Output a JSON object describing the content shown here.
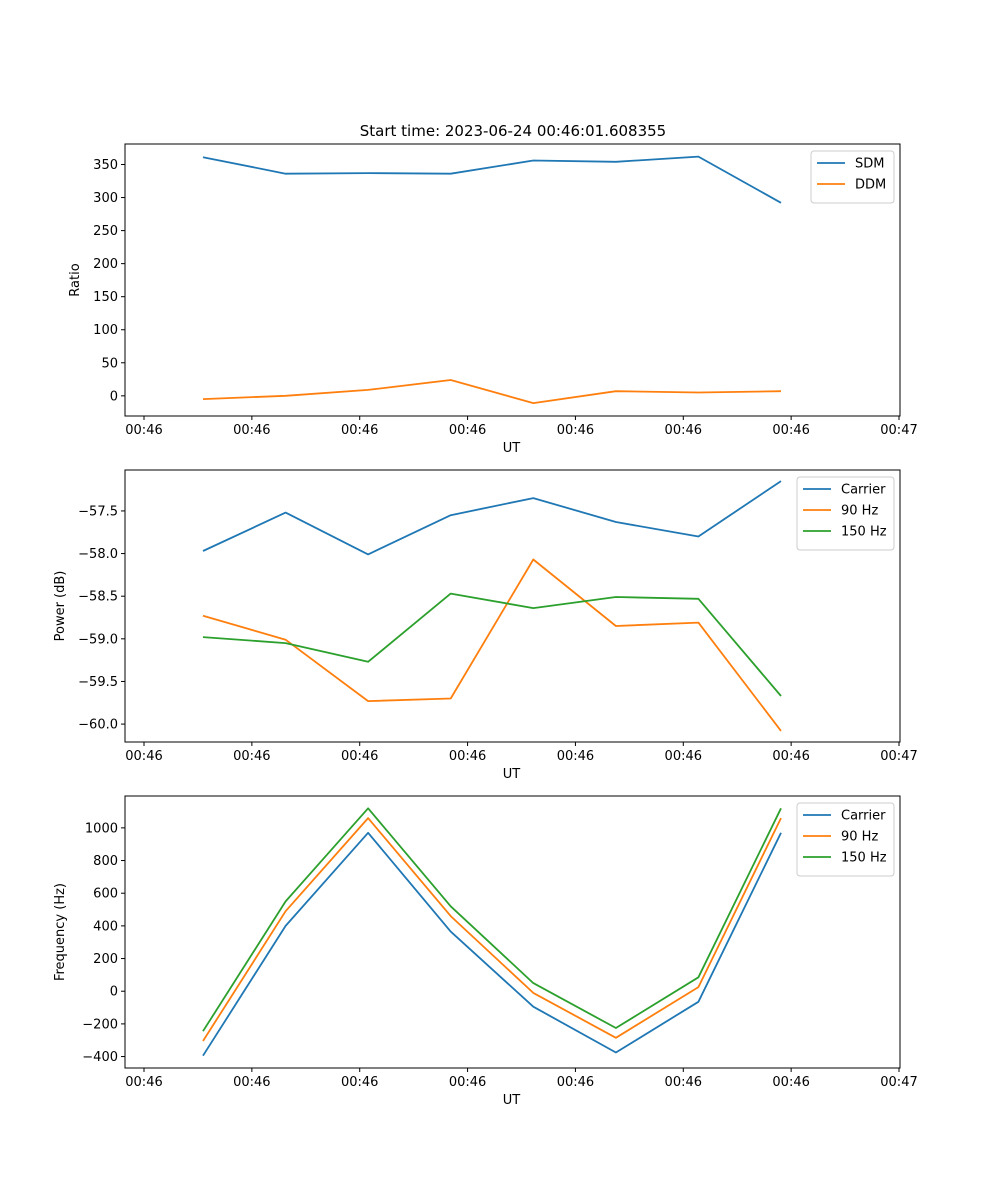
{
  "figure_title": "Start time: 2023-06-24 00:46:01.608355",
  "colors": {
    "blue": "#1f77b4",
    "orange": "#ff7f0e",
    "green": "#2ca02c"
  },
  "chart_data": [
    {
      "type": "line",
      "title": "Start time: 2023-06-24 00:46:01.608355",
      "xlabel": "UT",
      "ylabel": "Ratio",
      "x_tick_labels": [
        "00:46",
        "00:46",
        "00:46",
        "00:46",
        "00:46",
        "00:46",
        "00:46",
        "00:47"
      ],
      "y_ticks": [
        0,
        50,
        100,
        150,
        200,
        250,
        300,
        350
      ],
      "ylim": [
        -30.5,
        381
      ],
      "legend_position": "top-right",
      "series": [
        {
          "name": "SDM",
          "color": "#1f77b4",
          "values": [
            361,
            336,
            337,
            336,
            356,
            354,
            362,
            292
          ]
        },
        {
          "name": "DDM",
          "color": "#ff7f0e",
          "values": [
            -5,
            0,
            9,
            24,
            -11,
            7,
            5,
            7
          ]
        }
      ]
    },
    {
      "type": "line",
      "title": "",
      "xlabel": "UT",
      "ylabel": "Power (dB)",
      "x_tick_labels": [
        "00:46",
        "00:46",
        "00:46",
        "00:46",
        "00:46",
        "00:46",
        "00:46",
        "00:47"
      ],
      "y_ticks": [
        -60.0,
        -59.5,
        -59.0,
        -58.5,
        -58.0,
        -57.5
      ],
      "y_tick_labels": [
        "−60.0",
        "−59.5",
        "−59.0",
        "−58.5",
        "−58.0",
        "−57.5"
      ],
      "ylim": [
        -60.21,
        -57.02
      ],
      "legend_position": "top-right",
      "series": [
        {
          "name": "Carrier",
          "color": "#1f77b4",
          "values": [
            -57.97,
            -57.52,
            -58.01,
            -57.55,
            -57.35,
            -57.63,
            -57.8,
            -57.15
          ]
        },
        {
          "name": "90 Hz",
          "color": "#ff7f0e",
          "values": [
            -58.73,
            -59.01,
            -59.73,
            -59.7,
            -58.07,
            -58.85,
            -58.81,
            -60.08
          ]
        },
        {
          "name": "150 Hz",
          "color": "#2ca02c",
          "values": [
            -58.98,
            -59.05,
            -59.27,
            -58.47,
            -58.64,
            -58.51,
            -58.53,
            -59.67
          ]
        }
      ]
    },
    {
      "type": "line",
      "title": "",
      "xlabel": "UT",
      "ylabel": "Frequency (Hz)",
      "x_tick_labels": [
        "00:46",
        "00:46",
        "00:46",
        "00:46",
        "00:46",
        "00:46",
        "00:46",
        "00:47"
      ],
      "y_ticks": [
        -400,
        -200,
        0,
        200,
        400,
        600,
        800,
        1000
      ],
      "y_tick_labels": [
        "−400",
        "−200",
        "0",
        "200",
        "400",
        "600",
        "800",
        "1000"
      ],
      "ylim": [
        -470,
        1195
      ],
      "legend_position": "top-right",
      "series": [
        {
          "name": "Carrier",
          "color": "#1f77b4",
          "values": [
            -395,
            400,
            970,
            365,
            -95,
            -375,
            -65,
            970
          ]
        },
        {
          "name": "90 Hz",
          "color": "#ff7f0e",
          "values": [
            -305,
            490,
            1060,
            460,
            -10,
            -285,
            25,
            1060
          ]
        },
        {
          "name": "150 Hz",
          "color": "#2ca02c",
          "values": [
            -245,
            550,
            1120,
            520,
            50,
            -225,
            85,
            1120
          ]
        }
      ]
    }
  ]
}
